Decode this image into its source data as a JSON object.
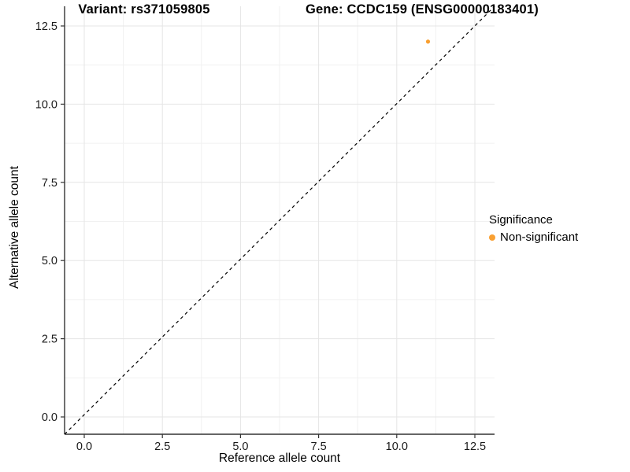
{
  "chart_data": {
    "type": "scatter",
    "title_left": "Variant: rs371059805",
    "title_right": "Gene: CCDC159 (ENSG00000183401)",
    "xlabel": "Reference allele count",
    "ylabel": "Alternative allele count",
    "xlim": [
      -0.625,
      13.125
    ],
    "ylim": [
      -0.625,
      13.125
    ],
    "x_ticks": [
      0,
      2.5,
      5,
      7.5,
      10,
      12.5
    ],
    "x_tick_labels": [
      "0.0",
      "2.5",
      "5.0",
      "7.5",
      "10.0",
      "12.5"
    ],
    "y_ticks": [
      0,
      2.5,
      5,
      7.5,
      10,
      12.5
    ],
    "y_tick_labels": [
      "0.0",
      "2.5",
      "5.0",
      "7.5",
      "10.0",
      "12.5"
    ],
    "x_minor_ticks": [
      1.25,
      3.75,
      6.25,
      8.75,
      11.25
    ],
    "y_minor_ticks": [
      1.25,
      3.75,
      6.25,
      8.75,
      11.25
    ],
    "grid": true,
    "points": [
      {
        "x": 11,
        "y": 12,
        "series": "Non-significant"
      }
    ],
    "reference_line": {
      "type": "identity",
      "slope": 1,
      "intercept": 0,
      "style": "dashed"
    },
    "legend_position": "right",
    "legend": {
      "title": "Significance",
      "items": [
        {
          "label": "Non-significant",
          "color": "#F9A032"
        }
      ]
    },
    "colors": {
      "point": "#F9A032",
      "grid_major": "#E5E5E5",
      "grid_minor": "#F1F1F1",
      "axis": "#333333",
      "diagonal": "#000000",
      "tick_text": "#1a1a1a"
    }
  }
}
